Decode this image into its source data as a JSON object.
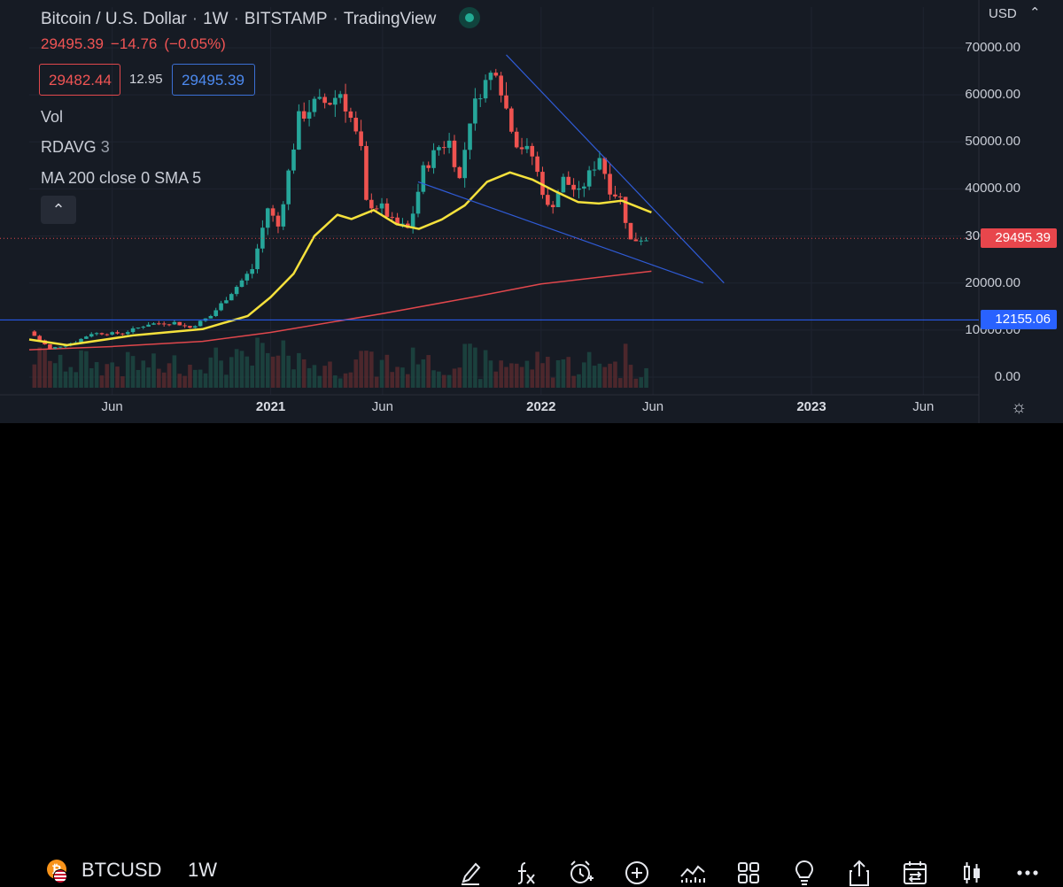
{
  "header": {
    "symbol_name": "Bitcoin / U.S. Dollar",
    "interval": "1W",
    "exchange": "BITSTAMP",
    "source": "TradingView",
    "last_price": "29495.39",
    "change": "−14.76",
    "change_pct": "(−0.05%)",
    "bid": "29482.44",
    "spread": "12.95",
    "ask": "29495.39",
    "currency": "USD",
    "currency_caret": "⌃"
  },
  "indicators": {
    "vol": "Vol",
    "rdavg_name": "RDAVG",
    "rdavg_value": "3",
    "ma": "MA  200 close 0 SMA 5",
    "collapse_glyph": "⌃"
  },
  "price_tags": {
    "last": "29495.39",
    "hline": "12155.06"
  },
  "toolbar": {
    "symbol": "BTCUSD",
    "interval": "1W",
    "btc_glyph": "₿",
    "icons": [
      "brush-icon",
      "fx-icon",
      "alert-clock-icon",
      "add-icon",
      "compare-icon",
      "layout-icon",
      "idea-bulb-icon",
      "share-icon",
      "replay-calendar-icon",
      "candle-style-icon",
      "more-icon"
    ],
    "settings_glyph": "☼"
  },
  "colors": {
    "background": "#161b24",
    "up": "#26a69a",
    "down": "#ef5350",
    "ma_yellow": "#f5e13c",
    "ma_red": "#e0474c",
    "trendline": "#2f5bd6",
    "hline": "#2962ff"
  },
  "chart_data": {
    "type": "candlestick",
    "title": "Bitcoin / U.S. Dollar · 1W · BITSTAMP",
    "ylim": [
      0,
      73000
    ],
    "y_ticks": [
      0,
      10000,
      20000,
      30000,
      40000,
      50000,
      60000,
      70000
    ],
    "y_tick_labels": [
      "0.00",
      "10000.00",
      "20000.00",
      "30000.00",
      "40000.00",
      "50000.00",
      "60000.00",
      "70000.00"
    ],
    "x_ticks": [
      {
        "date": "2020-06-01",
        "label": "Jun"
      },
      {
        "date": "2021-01-01",
        "label": "2021"
      },
      {
        "date": "2021-06-01",
        "label": "Jun"
      },
      {
        "date": "2022-01-01",
        "label": "2022"
      },
      {
        "date": "2022-06-01",
        "label": "Jun"
      },
      {
        "date": "2023-01-01",
        "label": "2023"
      },
      {
        "date": "2023-06-01",
        "label": "Jun"
      }
    ],
    "x_range": [
      "2020-02-10",
      "2023-08-15"
    ],
    "anchors": [
      [
        "2020-02-17",
        9700
      ],
      [
        "2020-03-16",
        6000
      ],
      [
        "2020-04-20",
        7500
      ],
      [
        "2020-05-11",
        9300
      ],
      [
        "2020-06-22",
        9300
      ],
      [
        "2020-07-27",
        11300
      ],
      [
        "2020-08-31",
        11600
      ],
      [
        "2020-09-21",
        10500
      ],
      [
        "2020-10-19",
        13000
      ],
      [
        "2020-11-16",
        18000
      ],
      [
        "2020-12-14",
        23000
      ],
      [
        "2021-01-04",
        36000
      ],
      [
        "2021-01-18",
        32000
      ],
      [
        "2021-02-15",
        55000
      ],
      [
        "2021-03-08",
        58000
      ],
      [
        "2021-03-29",
        58500
      ],
      [
        "2021-04-12",
        60500
      ],
      [
        "2021-04-26",
        55000
      ],
      [
        "2021-05-10",
        48000
      ],
      [
        "2021-05-17",
        37000
      ],
      [
        "2021-06-07",
        36000
      ],
      [
        "2021-06-21",
        33000
      ],
      [
        "2021-07-12",
        31500
      ],
      [
        "2021-07-19",
        35000
      ],
      [
        "2021-08-02",
        44000
      ],
      [
        "2021-08-23",
        49000
      ],
      [
        "2021-09-06",
        50000
      ],
      [
        "2021-09-20",
        42000
      ],
      [
        "2021-10-04",
        55000
      ],
      [
        "2021-10-18",
        61000
      ],
      [
        "2021-11-08",
        66000
      ],
      [
        "2021-11-22",
        57000
      ],
      [
        "2021-12-06",
        50000
      ],
      [
        "2021-12-27",
        47000
      ],
      [
        "2022-01-17",
        36000
      ],
      [
        "2022-01-24",
        37000
      ],
      [
        "2022-02-07",
        42000
      ],
      [
        "2022-02-28",
        39000
      ],
      [
        "2022-03-28",
        47000
      ],
      [
        "2022-04-11",
        40000
      ],
      [
        "2022-04-25",
        38000
      ],
      [
        "2022-05-09",
        29000
      ],
      [
        "2022-05-23",
        29495
      ]
    ],
    "volume_max": 1.0,
    "ma_200_sma": [
      [
        "2020-02-10",
        5800
      ],
      [
        "2020-06-01",
        6500
      ],
      [
        "2020-10-01",
        7600
      ],
      [
        "2021-01-01",
        9500
      ],
      [
        "2021-06-01",
        13500
      ],
      [
        "2021-10-01",
        17000
      ],
      [
        "2022-01-01",
        19800
      ],
      [
        "2022-05-30",
        22500
      ]
    ],
    "ma_fast": [
      [
        "2020-02-10",
        8000
      ],
      [
        "2020-04-01",
        6800
      ],
      [
        "2020-07-01",
        8900
      ],
      [
        "2020-10-01",
        10200
      ],
      [
        "2020-12-01",
        13000
      ],
      [
        "2021-01-01",
        17000
      ],
      [
        "2021-02-01",
        22000
      ],
      [
        "2021-03-01",
        30000
      ],
      [
        "2021-04-01",
        34500
      ],
      [
        "2021-04-20",
        33600
      ],
      [
        "2021-05-20",
        35500
      ],
      [
        "2021-06-20",
        32500
      ],
      [
        "2021-07-20",
        31500
      ],
      [
        "2021-08-20",
        33500
      ],
      [
        "2021-09-20",
        36500
      ],
      [
        "2021-10-20",
        41500
      ],
      [
        "2021-11-20",
        43500
      ],
      [
        "2021-12-20",
        42000
      ],
      [
        "2022-01-20",
        39500
      ],
      [
        "2022-02-20",
        37200
      ],
      [
        "2022-03-20",
        36900
      ],
      [
        "2022-04-20",
        37500
      ],
      [
        "2022-05-30",
        35000
      ]
    ],
    "trendlines": [
      {
        "from": [
          "2021-11-15",
          68500
        ],
        "to": [
          "2022-09-05",
          20000
        ]
      },
      {
        "from": [
          "2021-07-19",
          41500
        ],
        "to": [
          "2022-08-08",
          20000
        ]
      }
    ],
    "hline": 12155.06,
    "last_price_line": 29495.39
  }
}
